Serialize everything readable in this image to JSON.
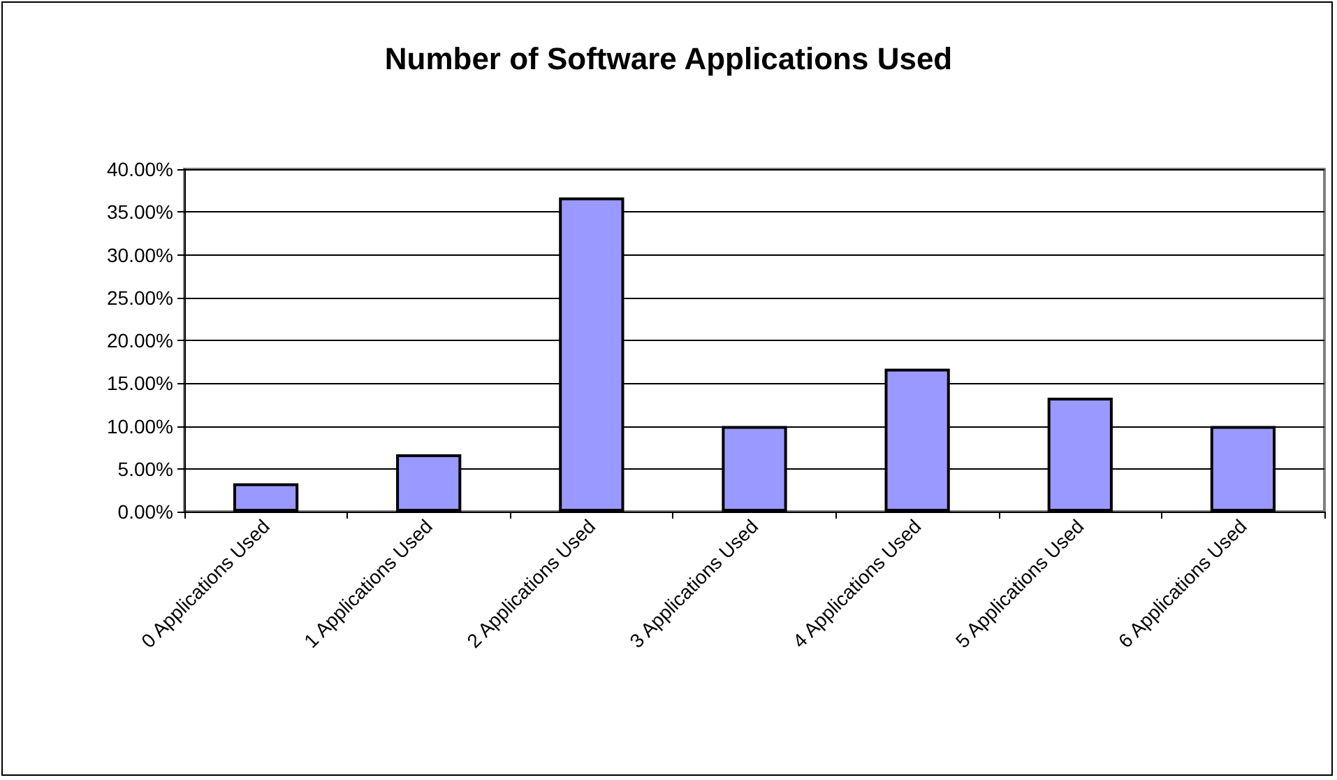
{
  "chart_data": {
    "type": "bar",
    "title": "Number of Software Applications Used",
    "categories": [
      "0 Applications Used",
      "1 Applications Used",
      "2 Applications Used",
      "3 Applications Used",
      "4 Applications Used",
      "5 Applications Used",
      "6 Applications Used"
    ],
    "values": [
      3.3,
      6.7,
      36.7,
      10,
      16.7,
      13.3,
      10
    ],
    "color": "#9999ff",
    "ylim": [
      0,
      40
    ],
    "yticks": [
      {
        "value": 0,
        "label": "0.00%"
      },
      {
        "value": 5,
        "label": "5.00%"
      },
      {
        "value": 10,
        "label": "10.00%"
      },
      {
        "value": 15,
        "label": "15.00%"
      },
      {
        "value": 20,
        "label": "20.00%"
      },
      {
        "value": 25,
        "label": "25.00%"
      },
      {
        "value": 30,
        "label": "30.00%"
      },
      {
        "value": 35,
        "label": "35.00%"
      },
      {
        "value": 40,
        "label": "40.00%"
      }
    ],
    "grid": "y"
  }
}
